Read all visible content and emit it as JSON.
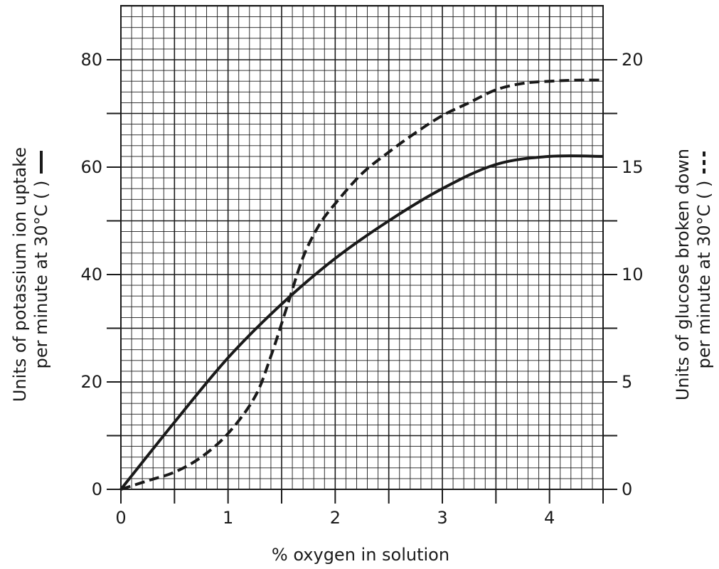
{
  "chart_data": {
    "type": "line",
    "title": "",
    "xlabel": "% oxygen in solution",
    "ylabel_left": [
      "Units of potassium ion uptake",
      "per minute at 30°C ("
    ],
    "ylabel_right": [
      "Units of glucose broken down",
      "per minute at 30°C ("
    ],
    "xlim": [
      0,
      4.5
    ],
    "ylim_left": [
      0,
      80
    ],
    "ylim_right": [
      0,
      20
    ],
    "grid": true,
    "x_ticks": [
      "0",
      "1",
      "2",
      "3",
      "4"
    ],
    "y_left_ticks": [
      "0",
      "20",
      "40",
      "60",
      "80"
    ],
    "y_right_ticks": [
      "0",
      "5",
      "10",
      "15",
      "20"
    ],
    "series": [
      {
        "axis": "left",
        "style": "solid",
        "color": "#1a1a1a",
        "x": [
          0,
          0.5,
          1.0,
          1.5,
          2.0,
          2.5,
          3.0,
          3.5,
          4.0,
          4.5
        ],
        "y": [
          0,
          12.5,
          24.5,
          34.5,
          43,
          50,
          56,
          60.5,
          62,
          62
        ]
      },
      {
        "axis": "right",
        "style": "dashed",
        "color": "#1a1a1a",
        "x": [
          0,
          0.25,
          0.5,
          0.75,
          1.0,
          1.25,
          1.4,
          1.55,
          1.7,
          1.85,
          2.0,
          2.25,
          2.5,
          2.75,
          3.0,
          3.25,
          3.5,
          3.75,
          4.0,
          4.25,
          4.5
        ],
        "y": [
          0,
          0.4,
          0.8,
          1.5,
          2.6,
          4.3,
          6.2,
          8.5,
          10.8,
          12.3,
          13.3,
          14.7,
          15.7,
          16.6,
          17.4,
          18.0,
          18.6,
          18.9,
          19.0,
          19.05,
          19.05
        ]
      }
    ]
  }
}
